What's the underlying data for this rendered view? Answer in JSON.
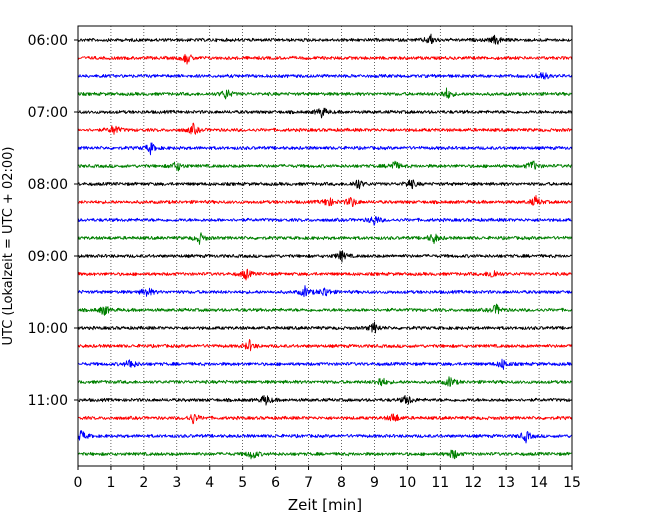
{
  "chart_data": {
    "type": "line",
    "xlabel": "Zeit  [min]",
    "ylabel": "UTC (Lokalzeit = UTC + 02:00)",
    "xlim": [
      0,
      15
    ],
    "x_ticks": [
      0,
      1,
      2,
      3,
      4,
      5,
      6,
      7,
      8,
      9,
      10,
      11,
      12,
      13,
      14,
      15
    ],
    "y_tick_labels": [
      "06:00",
      "07:00",
      "08:00",
      "09:00",
      "10:00",
      "11:00"
    ],
    "vertical_grid": true,
    "trace_interval_minutes": 15,
    "first_trace": "06:00",
    "trace_count": 24,
    "colors": [
      "#000000",
      "#ff0000",
      "#0000ff",
      "#008000"
    ],
    "events": [
      {
        "trace": 0,
        "at": [
          10.7,
          12.7
        ]
      },
      {
        "trace": 1,
        "at": [
          3.3
        ]
      },
      {
        "trace": 2,
        "at": [
          14.1
        ]
      },
      {
        "trace": 3,
        "at": [
          4.5,
          11.2
        ]
      },
      {
        "trace": 4,
        "at": [
          7.4
        ]
      },
      {
        "trace": 5,
        "at": [
          1.1,
          3.5
        ]
      },
      {
        "trace": 6,
        "at": [
          2.2
        ]
      },
      {
        "trace": 7,
        "at": [
          3.0,
          9.6,
          13.8
        ]
      },
      {
        "trace": 8,
        "at": [
          8.5,
          10.1
        ]
      },
      {
        "trace": 9,
        "at": [
          7.6,
          8.3,
          13.9
        ]
      },
      {
        "trace": 10,
        "at": [
          9.0
        ]
      },
      {
        "trace": 11,
        "at": [
          3.7,
          10.8
        ]
      },
      {
        "trace": 12,
        "at": [
          8.0
        ]
      },
      {
        "trace": 13,
        "at": [
          5.1,
          12.6
        ]
      },
      {
        "trace": 14,
        "at": [
          2.1,
          6.9,
          7.5
        ]
      },
      {
        "trace": 15,
        "at": [
          0.8,
          12.7
        ]
      },
      {
        "trace": 16,
        "at": [
          9.0
        ]
      },
      {
        "trace": 17,
        "at": [
          5.2
        ]
      },
      {
        "trace": 18,
        "at": [
          1.6,
          12.9
        ]
      },
      {
        "trace": 19,
        "at": [
          9.2,
          11.3
        ]
      },
      {
        "trace": 20,
        "at": [
          5.7,
          10.0
        ]
      },
      {
        "trace": 21,
        "at": [
          3.5,
          9.6
        ]
      },
      {
        "trace": 22,
        "at": [
          0.1,
          13.6
        ]
      },
      {
        "trace": 23,
        "at": [
          5.3,
          11.4
        ]
      }
    ]
  }
}
